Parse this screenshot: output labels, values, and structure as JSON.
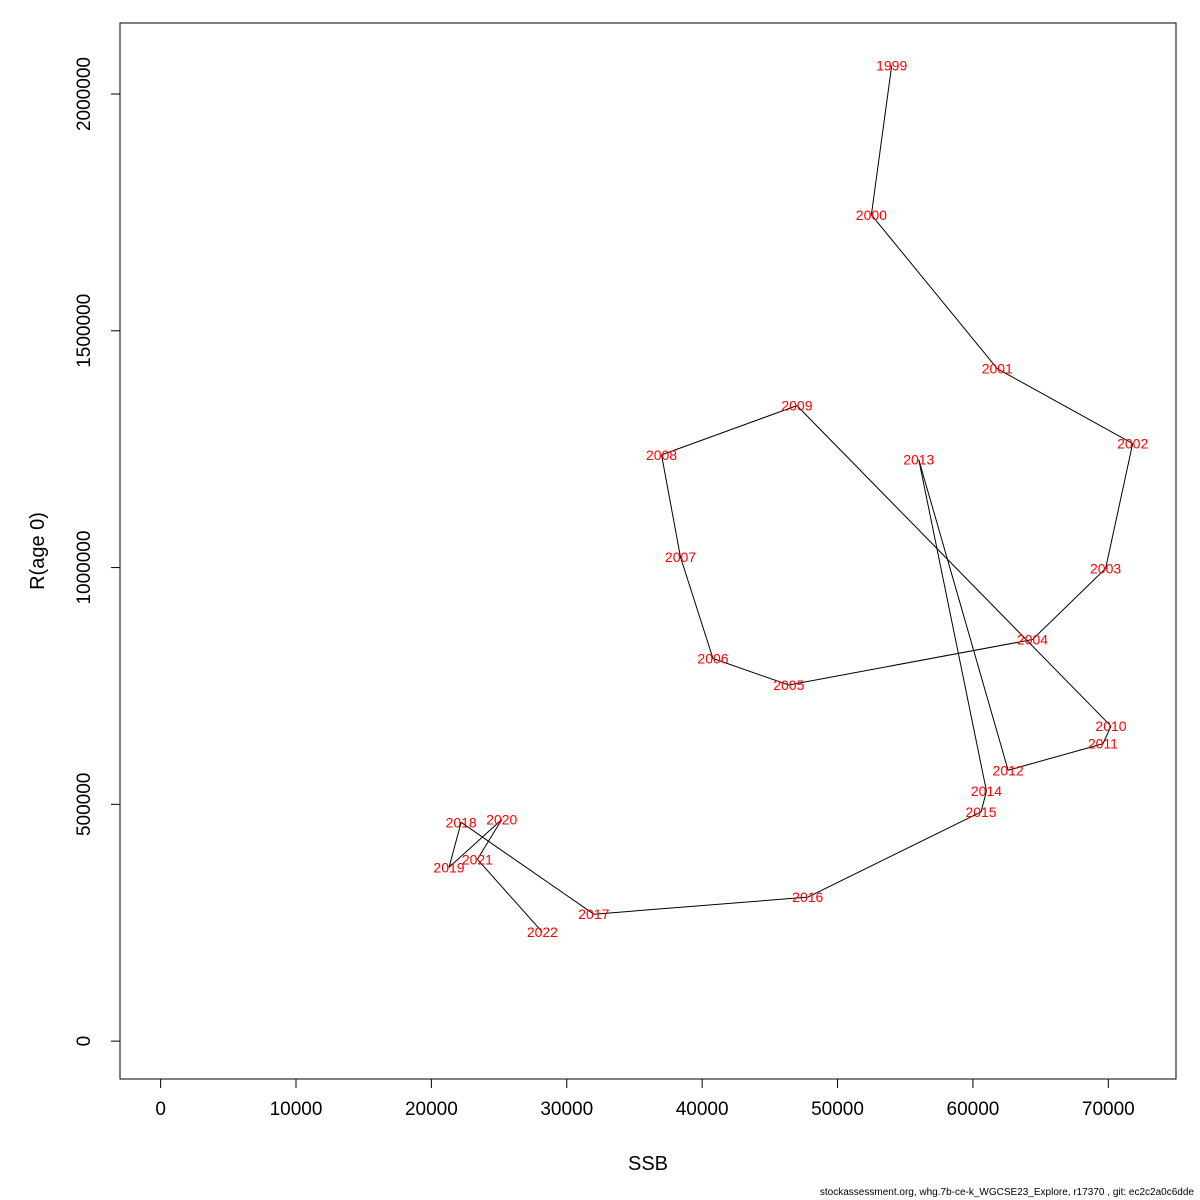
{
  "chart_data": {
    "type": "line",
    "xlabel": "SSB",
    "ylabel": "R(age 0)",
    "xlim": [
      -3000,
      75000
    ],
    "ylim": [
      -80000,
      2150000
    ],
    "x_ticks": [
      0,
      10000,
      20000,
      30000,
      40000,
      50000,
      60000,
      70000
    ],
    "x_tick_labels": [
      "0",
      "10000",
      "20000",
      "30000",
      "40000",
      "50000",
      "60000",
      "70000"
    ],
    "y_ticks": [
      0,
      500000,
      1000000,
      1500000,
      2000000
    ],
    "y_tick_labels": [
      "0",
      "500000",
      "1000000",
      "1500000",
      "2000000"
    ],
    "grid": false,
    "line_color": "#000000",
    "label_color": "#ff0000",
    "points": [
      {
        "label": "1999",
        "x": 54000,
        "y": 2060000
      },
      {
        "label": "2000",
        "x": 52500,
        "y": 1745000
      },
      {
        "label": "2001",
        "x": 61800,
        "y": 1420000
      },
      {
        "label": "2002",
        "x": 71800,
        "y": 1262000
      },
      {
        "label": "2003",
        "x": 69800,
        "y": 998000
      },
      {
        "label": "2004",
        "x": 64400,
        "y": 848000
      },
      {
        "label": "2005",
        "x": 46400,
        "y": 752000
      },
      {
        "label": "2006",
        "x": 40800,
        "y": 808000
      },
      {
        "label": "2007",
        "x": 38400,
        "y": 1022000
      },
      {
        "label": "2008",
        "x": 37000,
        "y": 1238000
      },
      {
        "label": "2009",
        "x": 47000,
        "y": 1342000
      },
      {
        "label": "2010",
        "x": 70200,
        "y": 665000
      },
      {
        "label": "2011",
        "x": 69600,
        "y": 628000
      },
      {
        "label": "2012",
        "x": 62600,
        "y": 572000
      },
      {
        "label": "2013",
        "x": 56000,
        "y": 1228000
      },
      {
        "label": "2014",
        "x": 61000,
        "y": 528000
      },
      {
        "label": "2015",
        "x": 60600,
        "y": 484000
      },
      {
        "label": "2016",
        "x": 47800,
        "y": 304000
      },
      {
        "label": "2017",
        "x": 32000,
        "y": 268000
      },
      {
        "label": "2018",
        "x": 22200,
        "y": 462000
      },
      {
        "label": "2019",
        "x": 21300,
        "y": 367000
      },
      {
        "label": "2020",
        "x": 25200,
        "y": 468000
      },
      {
        "label": "2021",
        "x": 23400,
        "y": 384000
      },
      {
        "label": "2022",
        "x": 28200,
        "y": 230000
      }
    ]
  },
  "footer": {
    "text": "stockassessment.org, whg.7b-ce-k_WGCSE23_Explore, r17370 , git: ec2c2a0c6dde"
  }
}
